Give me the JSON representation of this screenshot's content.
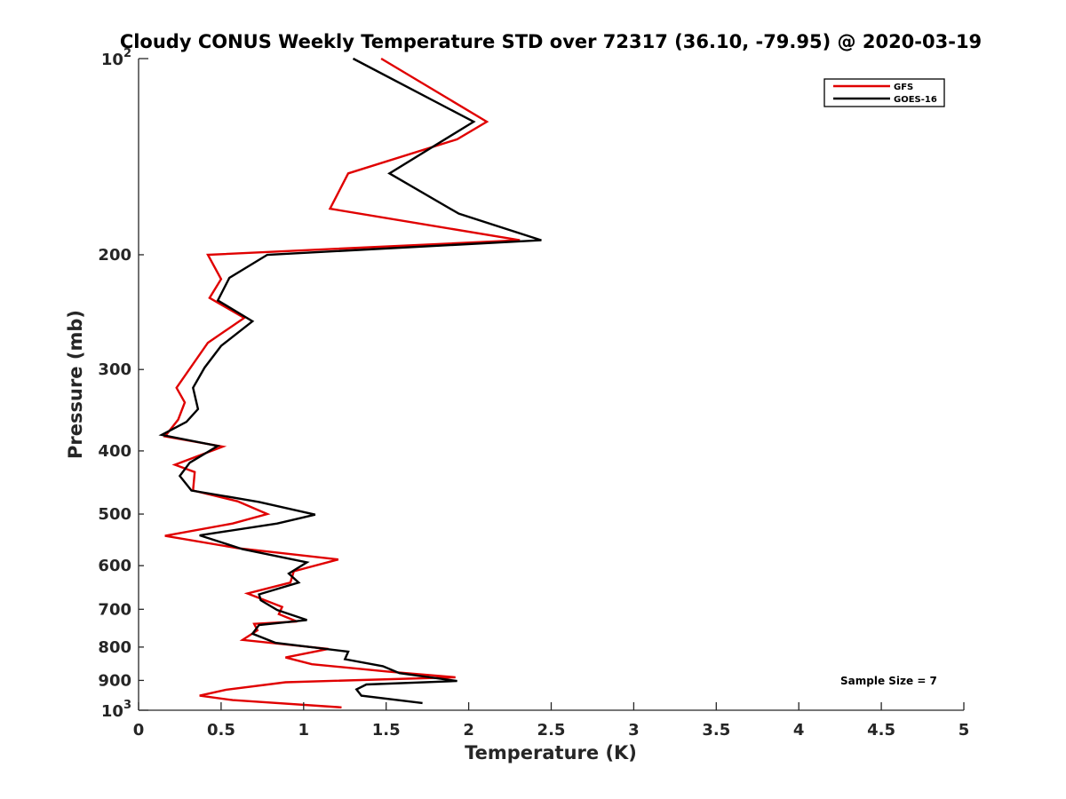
{
  "chart_data": {
    "type": "line",
    "title": "Cloudy CONUS Weekly Temperature STD over 72317 (36.10, -79.95) @ 2020-03-19",
    "xlabel": "Temperature (K)",
    "ylabel": "Pressure (mb)",
    "xlim": [
      0,
      5
    ],
    "ylim": [
      100,
      1000
    ],
    "y_scale": "log",
    "y_reversed": true,
    "x_ticks": [
      "0",
      "0.5",
      "1",
      "1.5",
      "2",
      "2.5",
      "3",
      "3.5",
      "4",
      "4.5",
      "5"
    ],
    "y_ticks": [
      {
        "value": 200,
        "label": "200"
      },
      {
        "value": 300,
        "label": "300"
      },
      {
        "value": 400,
        "label": "400"
      },
      {
        "value": 500,
        "label": "500"
      },
      {
        "value": 600,
        "label": "600"
      },
      {
        "value": 700,
        "label": "700"
      },
      {
        "value": 800,
        "label": "800"
      },
      {
        "value": 900,
        "label": "900"
      }
    ],
    "y_ticks_power": [
      {
        "value": 100,
        "base": "10",
        "exp": "2"
      },
      {
        "value": 1000,
        "base": "10",
        "exp": "3"
      }
    ],
    "grid": false,
    "legend_position": "top-right",
    "annotation": "Sample Size = 7",
    "series": [
      {
        "name": "GFS",
        "color": "#e00000",
        "points": [
          [
            1.47,
            100
          ],
          [
            2.11,
            125
          ],
          [
            1.93,
            133
          ],
          [
            1.27,
            150
          ],
          [
            1.16,
            170
          ],
          [
            2.31,
            190
          ],
          [
            0.42,
            200
          ],
          [
            0.5,
            218
          ],
          [
            0.43,
            233
          ],
          [
            0.64,
            250
          ],
          [
            0.42,
            273
          ],
          [
            0.23,
            320
          ],
          [
            0.28,
            337
          ],
          [
            0.24,
            358
          ],
          [
            0.16,
            380
          ],
          [
            0.51,
            394
          ],
          [
            0.22,
            420
          ],
          [
            0.34,
            431
          ],
          [
            0.33,
            460
          ],
          [
            0.6,
            478
          ],
          [
            0.78,
            500
          ],
          [
            0.57,
            517
          ],
          [
            0.16,
            540
          ],
          [
            0.6,
            564
          ],
          [
            1.21,
            587
          ],
          [
            0.94,
            612
          ],
          [
            0.92,
            637
          ],
          [
            0.66,
            662
          ],
          [
            0.87,
            694
          ],
          [
            0.85,
            712
          ],
          [
            0.96,
            731
          ],
          [
            0.7,
            737
          ],
          [
            0.72,
            754
          ],
          [
            0.63,
            780
          ],
          [
            1.15,
            805
          ],
          [
            0.89,
            830
          ],
          [
            1.05,
            850
          ],
          [
            1.5,
            872
          ],
          [
            1.92,
            890
          ],
          [
            0.89,
            906
          ],
          [
            0.53,
            930
          ],
          [
            0.37,
            950
          ],
          [
            0.57,
            965
          ],
          [
            1.23,
            990
          ]
        ]
      },
      {
        "name": "GOES-16",
        "color": "#000000",
        "points": [
          [
            1.3,
            100
          ],
          [
            2.03,
            125
          ],
          [
            1.52,
            150
          ],
          [
            1.94,
            173
          ],
          [
            2.44,
            190
          ],
          [
            0.78,
            200
          ],
          [
            0.55,
            217
          ],
          [
            0.48,
            235
          ],
          [
            0.69,
            253
          ],
          [
            0.5,
            276
          ],
          [
            0.4,
            298
          ],
          [
            0.33,
            320
          ],
          [
            0.36,
            345
          ],
          [
            0.29,
            361
          ],
          [
            0.14,
            378
          ],
          [
            0.48,
            393
          ],
          [
            0.31,
            417
          ],
          [
            0.25,
            437
          ],
          [
            0.32,
            460
          ],
          [
            0.73,
            479
          ],
          [
            1.07,
            501
          ],
          [
            0.84,
            517
          ],
          [
            0.37,
            539
          ],
          [
            0.63,
            566
          ],
          [
            1.02,
            593
          ],
          [
            0.91,
            617
          ],
          [
            0.97,
            637
          ],
          [
            0.73,
            664
          ],
          [
            0.74,
            678
          ],
          [
            0.84,
            702
          ],
          [
            1.02,
            727
          ],
          [
            0.73,
            740
          ],
          [
            0.69,
            763
          ],
          [
            0.83,
            788
          ],
          [
            1.27,
            813
          ],
          [
            1.25,
            835
          ],
          [
            1.48,
            856
          ],
          [
            1.58,
            877
          ],
          [
            1.93,
            902
          ],
          [
            1.38,
            913
          ],
          [
            1.32,
            929
          ],
          [
            1.35,
            950
          ],
          [
            1.72,
            975
          ]
        ]
      }
    ]
  }
}
